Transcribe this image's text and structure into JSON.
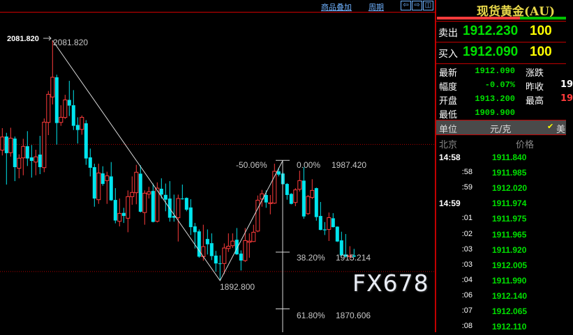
{
  "toolbar": {
    "overlay_label": "商品叠加",
    "period_label": "周期",
    "buttons": [
      "arrow-left",
      "arrow-right",
      "layout"
    ]
  },
  "panel": {
    "title": "现货黄金(AU)",
    "sell": {
      "label": "卖出",
      "price": "1912.230",
      "volume": "100"
    },
    "buy": {
      "label": "买入",
      "price": "1912.090",
      "volume": "100"
    },
    "stats": [
      {
        "label": "最新",
        "value": "1912.090",
        "label2": "涨跌",
        "value2": ""
      },
      {
        "label": "幅度",
        "value": "-0.07%",
        "label2": "昨收",
        "value2": "19"
      },
      {
        "label": "开盘",
        "value": "1913.200",
        "label2": "最高",
        "value2": "19"
      },
      {
        "label": "最低",
        "value": "1909.900"
      }
    ],
    "unit": {
      "label": "单位",
      "value": "元/克",
      "option": "美"
    },
    "ticks_header": {
      "time": "北京",
      "price": "价格"
    },
    "ticks": [
      {
        "time": "14:58",
        "price": "1911.840",
        "major": true
      },
      {
        "time": ":58",
        "price": "1911.985"
      },
      {
        "time": ":59",
        "price": "1912.020"
      },
      {
        "time": "14:59",
        "price": "1911.974",
        "major": true
      },
      {
        "time": ":01",
        "price": "1911.975"
      },
      {
        "time": ":02",
        "price": "1911.965"
      },
      {
        "time": ":03",
        "price": "1911.920"
      },
      {
        "time": ":03",
        "price": "1912.005"
      },
      {
        "time": ":04",
        "price": "1911.990"
      },
      {
        "time": ":06",
        "price": "1912.140"
      },
      {
        "time": ":07",
        "price": "1912.065"
      },
      {
        "time": ":08",
        "price": "1912.110"
      }
    ],
    "colors": {
      "up": "#ff3b3b",
      "down": "#00e5ee",
      "price": "#00e000",
      "volume": "#ffff00",
      "title": "#e8d84a"
    }
  },
  "watermark": "FX678",
  "chart_data": {
    "type": "candlestick",
    "ylim": [
      1866,
      2100
    ],
    "reference_lines": [
      2000,
      1900
    ],
    "high_marker": {
      "label": "2081.820",
      "value": 2081.82
    },
    "trendline": [
      {
        "index": 12,
        "price": 2081.82
      },
      {
        "index": 52,
        "price": 1892.8
      },
      {
        "index": 67,
        "price": 1987.42
      }
    ],
    "low_label": "1892.800",
    "fibonacci": [
      {
        "pct": "0.00%",
        "value": "1987.420",
        "price": 1987.42
      },
      {
        "pct": "38.20%",
        "value": "1915.214",
        "price": 1915.214
      },
      {
        "pct": "61.80%",
        "value": "1870.606",
        "price": 1870.606
      }
    ],
    "retracement_label": "-50.06%",
    "candles": [
      [
        1995.5,
        2012.8,
        1991.3,
        2005.8
      ],
      [
        2006.2,
        2009.1,
        1968.4,
        1993.1
      ],
      [
        1993.5,
        2013.1,
        1990.4,
        2004.9
      ],
      [
        2004.6,
        2006.2,
        1971.1,
        1982.1
      ],
      [
        1981.2,
        1992.2,
        1973.3,
        1989.1
      ],
      [
        1989.4,
        2004.4,
        1975.7,
        1998.4
      ],
      [
        1998.6,
        2010.4,
        1983.0,
        1988.9
      ],
      [
        1989.8,
        1999.5,
        1973.9,
        1987.0
      ],
      [
        1986.1,
        1995.8,
        1975.7,
        1990.2
      ],
      [
        1992.0,
        2006.7,
        1976.6,
        1982.1
      ],
      [
        1981.7,
        2020.4,
        1978.1,
        2017.5
      ],
      [
        2017.3,
        2042.0,
        2007.3,
        2039.4
      ],
      [
        2037.3,
        2081.82,
        2031.4,
        2052.8
      ],
      [
        2052.8,
        2054.8,
        1999.8,
        2016.8
      ],
      [
        2017.3,
        2030.8,
        2014.6,
        2021.3
      ],
      [
        2021.2,
        2039.0,
        2020.0,
        2035.0
      ],
      [
        2035.0,
        2050.0,
        2022.3,
        2030.5
      ],
      [
        2030.8,
        2042.7,
        2011.3,
        2014.6
      ],
      [
        2015.3,
        2021.3,
        2000.7,
        2011.3
      ],
      [
        2011.8,
        2022.8,
        2007.6,
        2021.3
      ],
      [
        2016.6,
        2019.1,
        1983.9,
        1988.9
      ],
      [
        1989.8,
        1996.7,
        1974.8,
        1981.6
      ],
      [
        1982.1,
        1984.8,
        1951.0,
        1957.4
      ],
      [
        1956.5,
        1984.8,
        1953.2,
        1977.5
      ],
      [
        1977.2,
        1982.8,
        1967.5,
        1968.9
      ],
      [
        1971.5,
        1978.5,
        1953.2,
        1975.3
      ],
      [
        1974.8,
        1986.1,
        1955.6,
        1956.0
      ],
      [
        1956.3,
        1965.6,
        1937.9,
        1940.1
      ],
      [
        1939.5,
        1957.4,
        1935.5,
        1945.7
      ],
      [
        1946.1,
        1950.1,
        1938.2,
        1943.7
      ],
      [
        1941.9,
        1963.8,
        1930.9,
        1958.9
      ],
      [
        1958.9,
        1974.8,
        1952.5,
        1962.2
      ],
      [
        1962.0,
        1983.9,
        1952.9,
        1978.1
      ],
      [
        1977.0,
        1983.6,
        1946.4,
        1947.0
      ],
      [
        1946.4,
        1963.8,
        1936.8,
        1961.6
      ],
      [
        1960.9,
        1966.6,
        1957.4,
        1962.7
      ],
      [
        1963.4,
        1969.2,
        1938.6,
        1939.0
      ],
      [
        1939.5,
        1970.1,
        1938.6,
        1965.6
      ],
      [
        1965.1,
        1973.3,
        1957.4,
        1960.5
      ],
      [
        1960.3,
        1969.2,
        1947.4,
        1956.5
      ],
      [
        1957.4,
        1971.1,
        1939.2,
        1942.3
      ],
      [
        1943.7,
        1960.5,
        1939.2,
        1942.3
      ],
      [
        1942.3,
        1960.5,
        1923.6,
        1957.4
      ],
      [
        1957.4,
        1968.4,
        1956.5,
        1957.0
      ],
      [
        1957.9,
        1958.3,
        1947.4,
        1948.6
      ],
      [
        1950.4,
        1956.9,
        1928.7,
        1934.9
      ],
      [
        1935.5,
        1938.2,
        1918.1,
        1930.9
      ],
      [
        1931.6,
        1933.1,
        1910.8,
        1911.7
      ],
      [
        1911.7,
        1936.8,
        1908.5,
        1919.6
      ],
      [
        1925.6,
        1933.1,
        1913.4,
        1921.4
      ],
      [
        1922.3,
        1930.0,
        1909.0,
        1912.1
      ],
      [
        1912.5,
        1916.2,
        1899.8,
        1906.3
      ],
      [
        1906.4,
        1912.7,
        1892.8,
        1906.1
      ],
      [
        1906.3,
        1922.1,
        1898.0,
        1918.5
      ],
      [
        1918.1,
        1930.0,
        1915.4,
        1919.9
      ],
      [
        1920.3,
        1930.0,
        1918.5,
        1923.9
      ],
      [
        1925.0,
        1934.2,
        1913.0,
        1913.5
      ],
      [
        1914.1,
        1916.6,
        1900.8,
        1908.6
      ],
      [
        1908.6,
        1934.2,
        1907.5,
        1924.3
      ],
      [
        1923.0,
        1930.0,
        1910.8,
        1923.9
      ],
      [
        1923.6,
        1936.8,
        1923.2,
        1930.9
      ],
      [
        1931.8,
        1959.8,
        1930.9,
        1956.1
      ],
      [
        1957.0,
        1964.2,
        1951.0,
        1961.1
      ],
      [
        1960.2,
        1963.8,
        1950.1,
        1954.3
      ],
      [
        1953.4,
        1960.2,
        1945.0,
        1954.1
      ],
      [
        1953.8,
        1984.8,
        1953.2,
        1978.8
      ],
      [
        1978.8,
        1981.7,
        1974.8,
        1976.2
      ],
      [
        1977.1,
        1978.0,
        1968.4,
        1968.7
      ],
      [
        1968.9,
        1969.6,
        1956.5,
        1960.2
      ],
      [
        1961.1,
        1961.6,
        1952.8,
        1953.2
      ],
      [
        1954.3,
        1965.6,
        1951.4,
        1964.2
      ],
      [
        1964.7,
        1979.3,
        1962.9,
        1971.5
      ],
      [
        1971.5,
        1982.1,
        1941.5,
        1943.3
      ],
      [
        1945.5,
        1960.2,
        1944.6,
        1959.0
      ],
      [
        1958.3,
        1972.6,
        1956.9,
        1963.8
      ],
      [
        1965.6,
        1966.0,
        1940.0,
        1942.8
      ],
      [
        1943.7,
        1954.7,
        1932.4,
        1932.7
      ],
      [
        1933.1,
        1938.9,
        1928.7,
        1932.4
      ],
      [
        1933.1,
        1946.4,
        1924.0,
        1942.4
      ],
      [
        1941.9,
        1945.9,
        1934.6,
        1934.9
      ],
      [
        1935.3,
        1935.5,
        1923.2,
        1923.6
      ],
      [
        1924.5,
        1931.3,
        1912.1,
        1912.6
      ],
      [
        1913.4,
        1929.5,
        1910.8,
        1911.7
      ],
      [
        1911.7,
        1919.9,
        1909.7,
        1912.5
      ],
      [
        1912.6,
        1917.8,
        1911.2,
        1911.7
      ]
    ]
  }
}
